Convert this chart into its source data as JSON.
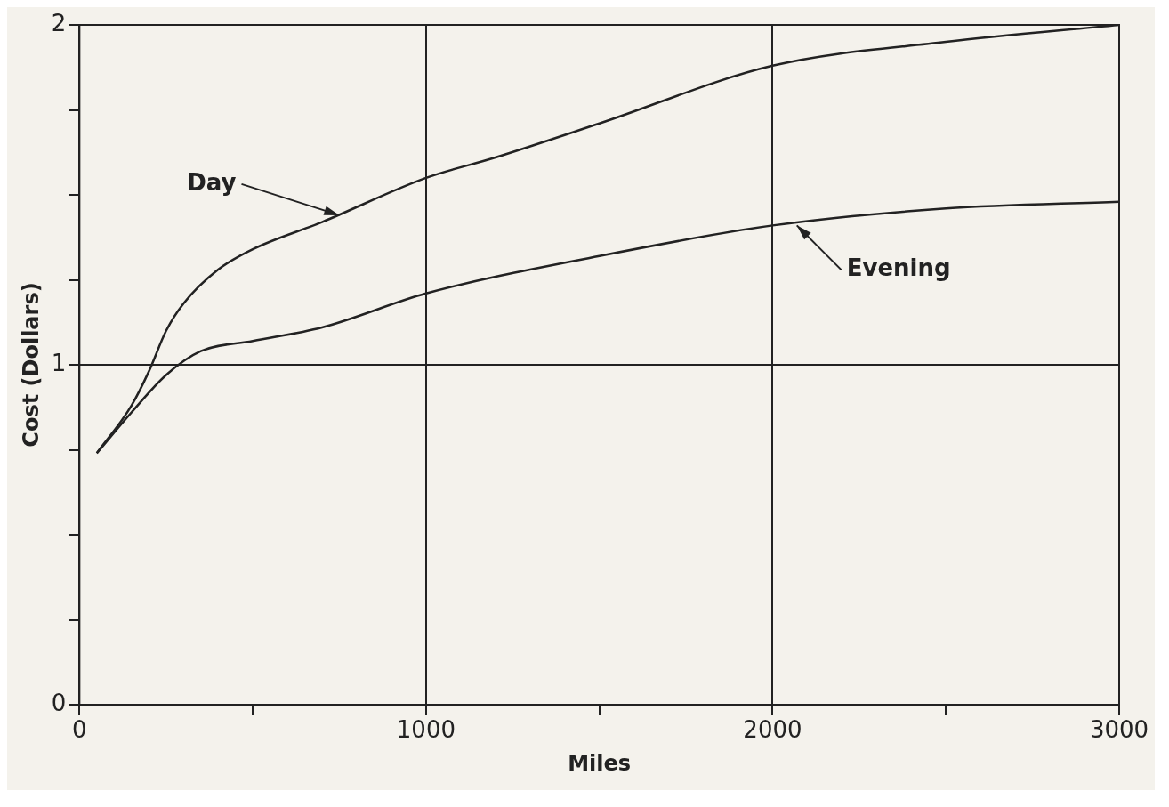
{
  "chart_data": {
    "type": "line",
    "xlabel": "Miles",
    "ylabel": "Cost (Dollars)",
    "xlim": [
      0,
      3000
    ],
    "ylim": [
      0,
      2
    ],
    "xticks": [
      0,
      {
        "value": 500,
        "label": null
      },
      1000,
      {
        "value": 1500,
        "label": null
      },
      2000,
      {
        "value": 2500,
        "label": null
      },
      3000
    ],
    "yticks": [
      0,
      {
        "value": 0.25,
        "label": null
      },
      {
        "value": 0.5,
        "label": null
      },
      {
        "value": 0.75,
        "label": null
      },
      1,
      {
        "value": 1.25,
        "label": null
      },
      {
        "value": 1.5,
        "label": null
      },
      {
        "value": 1.75,
        "label": null
      },
      2
    ],
    "grid": true,
    "legend": false,
    "marker": "none",
    "line_style": "solid",
    "series": [
      {
        "color": "#222222",
        "x": [
          50,
          150,
          200,
          250,
          300,
          400,
          500,
          700,
          1000,
          1200,
          1500,
          2000,
          2500,
          3000
        ],
        "values": [
          0.74,
          0.88,
          0.98,
          1.1,
          1.18,
          1.28,
          1.34,
          1.42,
          1.55,
          1.61,
          1.71,
          1.88,
          1.95,
          2.0
        ]
      },
      {
        "color": "#222222",
        "x": [
          50,
          150,
          250,
          350,
          500,
          700,
          1000,
          1500,
          2000,
          2500,
          3000
        ],
        "values": [
          0.74,
          0.86,
          0.97,
          1.04,
          1.07,
          1.11,
          1.21,
          1.32,
          1.41,
          1.46,
          1.48
        ]
      }
    ],
    "annotations": [
      {
        "text": "Day",
        "x": 750,
        "y": 1.44
      },
      {
        "text": "Evening",
        "x": 2070,
        "y": 1.41
      }
    ]
  }
}
